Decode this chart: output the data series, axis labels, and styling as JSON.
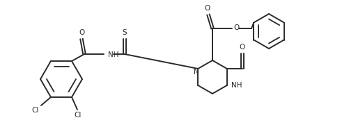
{
  "bg_color": "#ffffff",
  "line_color": "#2a2a2a",
  "line_width": 1.4,
  "figsize": [
    5.01,
    1.96
  ],
  "dpi": 100,
  "xlim": [
    0,
    5.01
  ],
  "ylim": [
    0,
    1.96
  ]
}
